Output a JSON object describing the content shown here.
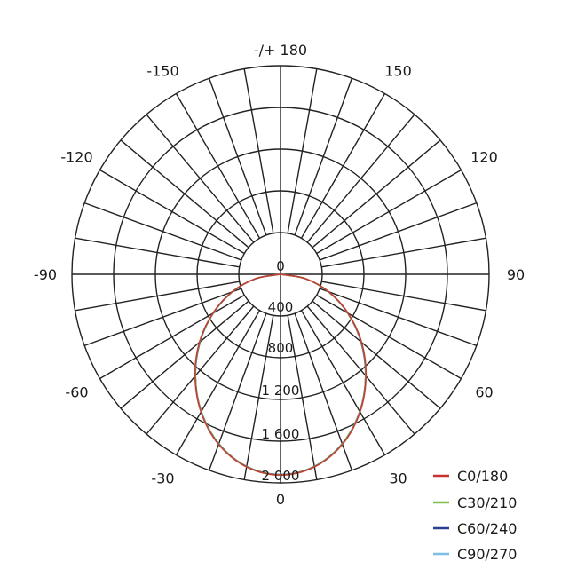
{
  "chart_data": {
    "type": "polar",
    "title": "",
    "angle_labels": [
      "-/+ 180",
      "-150",
      "150",
      "-120",
      "120",
      "-90",
      "90",
      "-60",
      "60",
      "-30",
      "30",
      "0"
    ],
    "angle_label_values": [
      180,
      -150,
      150,
      -120,
      120,
      -90,
      90,
      -60,
      60,
      -30,
      30,
      0
    ],
    "angle_grid_step_deg": 10,
    "radial_range": [
      0,
      2000
    ],
    "radial_ticks": [
      0,
      400,
      800,
      1200,
      1600,
      2000
    ],
    "radial_tick_labels": [
      "0",
      "400",
      "800",
      "1 200",
      "1 600",
      "2 000"
    ],
    "grid": true,
    "legend_position": "bottom-right",
    "angles": [
      -90,
      -80,
      -70,
      -60,
      -50,
      -40,
      -30,
      -20,
      -10,
      0,
      10,
      20,
      30,
      40,
      50,
      60,
      70,
      80,
      90
    ],
    "series": [
      {
        "name": "C0/180",
        "color": "#c8322d",
        "values": [
          0,
          245,
          495,
          750,
          1015,
          1275,
          1525,
          1735,
          1875,
          1925,
          1875,
          1735,
          1525,
          1275,
          1015,
          750,
          495,
          245,
          0
        ]
      },
      {
        "name": "C30/210",
        "color": "#7dbf4a",
        "values": [
          0,
          242,
          490,
          745,
          1010,
          1270,
          1520,
          1730,
          1872,
          1922,
          1872,
          1730,
          1520,
          1270,
          1010,
          745,
          490,
          242,
          0
        ]
      },
      {
        "name": "C60/240",
        "color": "#2b3f8f",
        "values": [
          0,
          240,
          488,
          742,
          1005,
          1268,
          1518,
          1728,
          1870,
          1920,
          1870,
          1728,
          1518,
          1268,
          1005,
          742,
          488,
          240,
          0
        ]
      },
      {
        "name": "C90/270",
        "color": "#7fbde3",
        "values": [
          0,
          243,
          490,
          745,
          1010,
          1270,
          1520,
          1730,
          1873,
          1923,
          1873,
          1730,
          1520,
          1270,
          1010,
          745,
          490,
          243,
          0
        ]
      }
    ]
  }
}
